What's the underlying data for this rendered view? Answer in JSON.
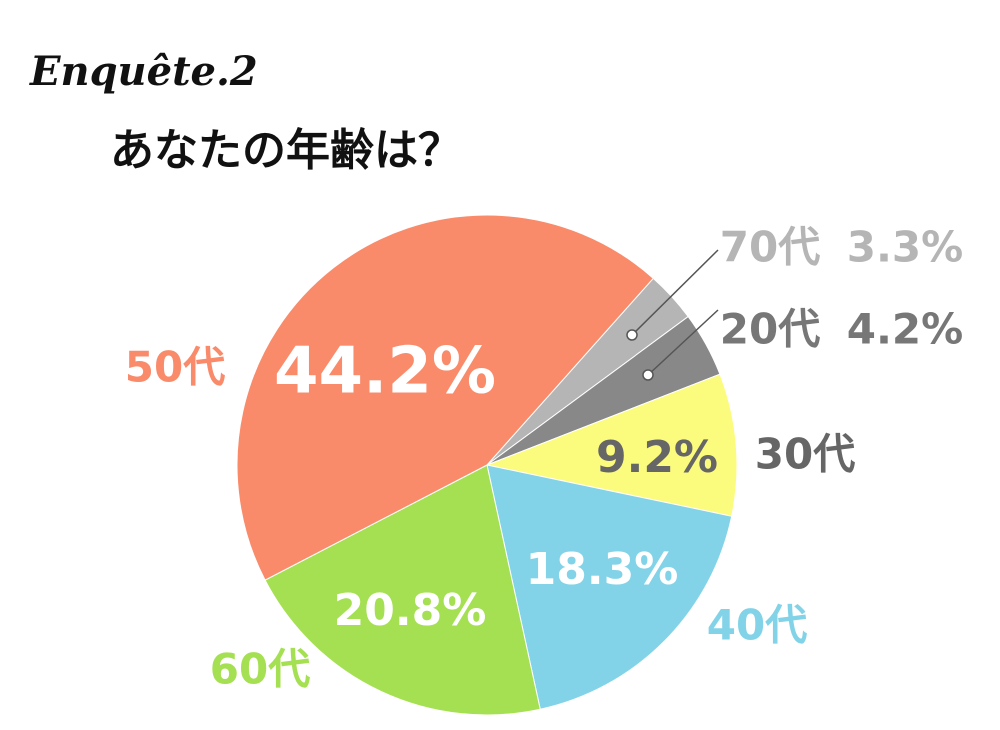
{
  "chart_data": {
    "type": "pie",
    "subtitle": "Enquête.2",
    "title": "あなたの年齢は？",
    "categories": [
      "70代",
      "20代",
      "30代",
      "40代",
      "60代",
      "50代"
    ],
    "values": [
      3.3,
      4.2,
      9.2,
      18.3,
      20.8,
      44.2
    ],
    "value_labels": [
      "3.3%",
      "4.2%",
      "9.2%",
      "18.3%",
      "20.8%",
      "44.2%"
    ],
    "colors": [
      "#b5b5b5",
      "#888888",
      "#fbfb7d",
      "#83d3e8",
      "#a5e052",
      "#f98b6b"
    ]
  }
}
